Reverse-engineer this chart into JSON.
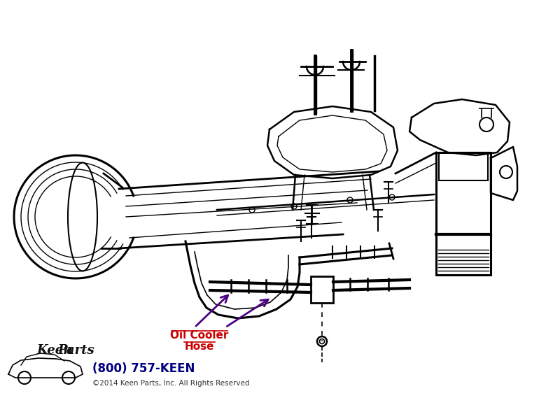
{
  "bg_color": "#ffffff",
  "line_color": "#000000",
  "arrow_color": "#4B0082",
  "label_color": "#cc0000",
  "phone_color": "#000080",
  "copyright_color": "#333333",
  "label_text_1": "Oil Cooler",
  "label_text_2": "Hose",
  "phone_text": "(800) 757-KEEN",
  "copyright_text": "©2014 Keen Parts, Inc. All Rights Reserved",
  "figsize": [
    7.7,
    5.79
  ],
  "dpi": 100
}
